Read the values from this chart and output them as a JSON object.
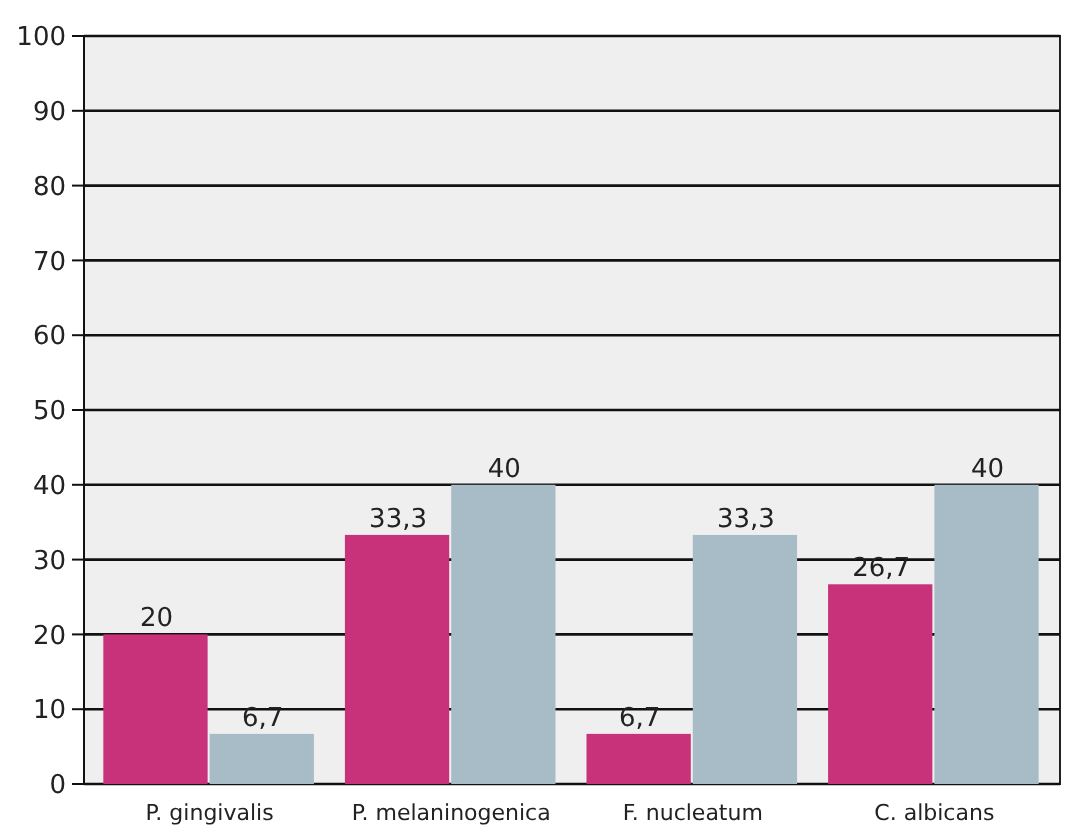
{
  "chart_data": {
    "type": "bar",
    "categories": [
      "P. gingivalis",
      "P. melaninogenica",
      "F. nucleatum",
      "C. albicans"
    ],
    "series": [
      {
        "color": "#c8327a",
        "values": [
          20,
          33.3,
          6.7,
          26.7
        ],
        "value_labels": [
          "20",
          "33,3",
          "6,7",
          "26,7"
        ]
      },
      {
        "color": "#a8bcc8",
        "values": [
          6.7,
          40,
          33.3,
          40
        ],
        "value_labels": [
          "6,7",
          "40",
          "33,3",
          "40"
        ]
      }
    ],
    "ylim": [
      0,
      100
    ],
    "yticks": [
      0,
      10,
      20,
      30,
      40,
      50,
      60,
      70,
      80,
      90,
      100
    ],
    "grid": "y"
  }
}
